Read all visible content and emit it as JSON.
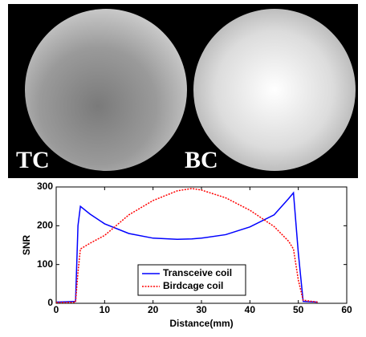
{
  "image": {
    "labels": [
      "TC",
      "BC"
    ]
  },
  "chart_data": {
    "type": "line",
    "xlabel": "Distance(mm)",
    "ylabel": "SNR",
    "x": [
      0,
      2,
      4,
      4.5,
      5,
      7,
      10,
      15,
      20,
      25,
      28,
      30,
      35,
      40,
      45,
      48,
      49,
      50,
      51,
      54
    ],
    "series": [
      {
        "name": "Transceive coil",
        "color": "#0000ff",
        "style": "solid",
        "values": [
          3,
          4,
          5,
          200,
          250,
          230,
          205,
          180,
          168,
          165,
          166,
          168,
          177,
          197,
          228,
          270,
          285,
          130,
          5,
          3
        ]
      },
      {
        "name": "Birdcage coil",
        "color": "#ff0000",
        "style": "dotted",
        "values": [
          2,
          2,
          3,
          80,
          140,
          155,
          175,
          228,
          265,
          290,
          296,
          292,
          272,
          240,
          198,
          160,
          140,
          60,
          8,
          3
        ]
      }
    ],
    "xlim": [
      0,
      60
    ],
    "xticks": [
      0,
      10,
      20,
      30,
      40,
      50,
      60
    ],
    "ylim": [
      0,
      300
    ],
    "yticks": [
      0,
      100,
      200,
      300
    ],
    "legend": "lower center"
  }
}
